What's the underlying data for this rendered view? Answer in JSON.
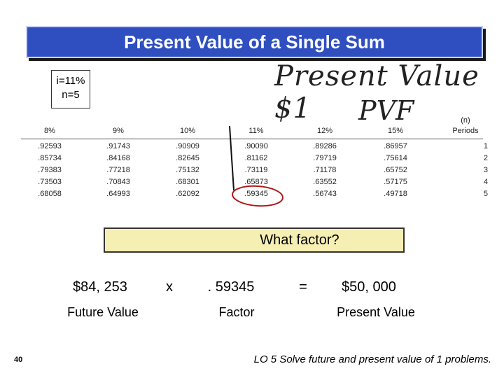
{
  "title": "Present Value of a Single Sum",
  "rate_box": [
    "i=11%",
    "n=5"
  ],
  "handwriting": [
    "Present Value $1",
    "PVF"
  ],
  "table": {
    "n_label": "(n)",
    "headers": [
      "8%",
      "9%",
      "10%",
      "11%",
      "12%",
      "15%",
      "Periods"
    ],
    "rows": [
      [
        ".92593",
        ".91743",
        ".90909",
        ".90090",
        ".89286",
        ".86957",
        "1"
      ],
      [
        ".85734",
        ".84168",
        ".82645",
        ".81162",
        ".79719",
        ".75614",
        "2"
      ],
      [
        ".79383",
        ".77218",
        ".75132",
        ".73119",
        ".71178",
        ".65752",
        "3"
      ],
      [
        ".73503",
        ".70843",
        ".68301",
        ".65873",
        ".63552",
        ".57175",
        "4"
      ],
      [
        ".68058",
        ".64993",
        ".62092",
        ".59345",
        ".56743",
        ".49718",
        "5"
      ]
    ]
  },
  "question": "What factor?",
  "equation": {
    "items": [
      "$84, 253",
      "x",
      ". 59345",
      "=",
      "$50, 000"
    ],
    "labels": [
      "Future Value",
      "Factor",
      "Present Value"
    ]
  },
  "slide_number": "40",
  "footer": "LO 5  Solve future and present value of 1 problems."
}
